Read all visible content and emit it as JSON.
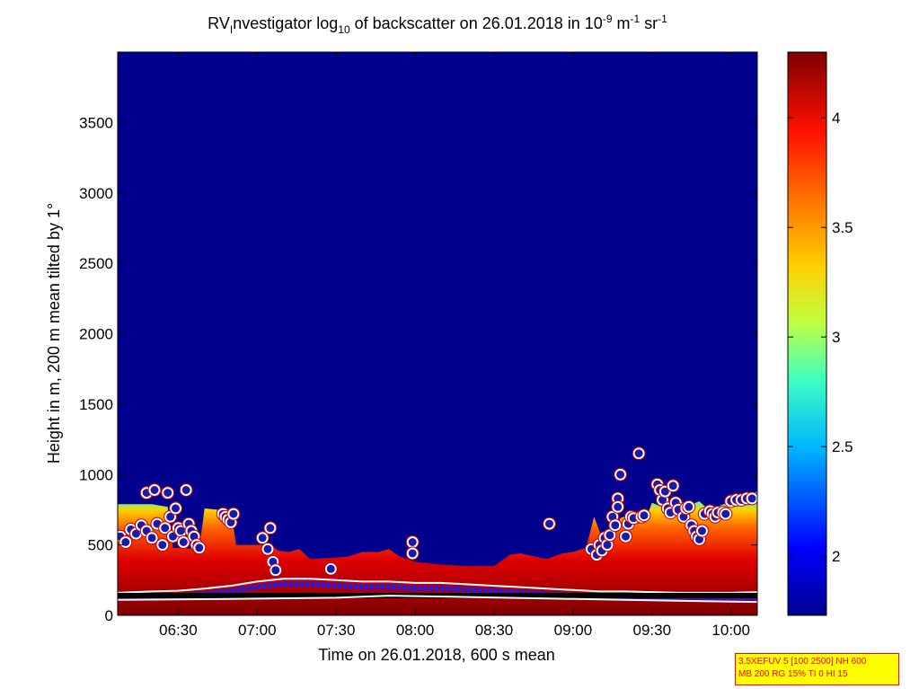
{
  "title": {
    "prefix": "RV",
    "sub1": "I",
    "part1": "nvestigator log",
    "sub2": "10",
    "part2": " of backscatter on 26.01.2018 in 10",
    "sup1": "-9",
    "part3": " m",
    "sup2": "-1",
    "part4": " sr",
    "sup3": "-1"
  },
  "parameters_box": {
    "line1": "3.5XEFUV 5 [100 2500] NH 600",
    "line2": "MB 200 RG 15% TI 0 HI 15"
  },
  "colors": {
    "background_low": "#00008f",
    "marker_fill": "#1a1aa6",
    "marker_ring": "#ffffff",
    "marker_outline": "#cc0000",
    "ground_line": "#000000"
  },
  "chart_data": {
    "type": "heatmap",
    "xlabel": "Time on 26.01.2018, 600 s mean",
    "ylabel": "Height in m, 200 m mean tilted by 1°",
    "x_ticks": [
      "06:30",
      "07:00",
      "07:30",
      "08:00",
      "08:30",
      "09:00",
      "09:30",
      "10:00"
    ],
    "xlim_minutes": [
      367,
      610
    ],
    "x_tick_minutes": [
      390,
      420,
      450,
      480,
      510,
      540,
      570,
      600
    ],
    "y_ticks": [
      0,
      500,
      1000,
      1500,
      2000,
      2500,
      3000,
      3500
    ],
    "ylim": [
      0,
      4000
    ],
    "colorbar": {
      "ticks": [
        2,
        2.5,
        3,
        3.5,
        4
      ],
      "range": [
        1.73,
        4.3
      ]
    },
    "top_layer_m": [
      [
        367,
        790
      ],
      [
        380,
        790
      ],
      [
        386,
        770
      ],
      [
        388,
        480
      ],
      [
        398,
        470
      ],
      [
        400,
        760
      ],
      [
        410,
        740
      ],
      [
        412,
        500
      ],
      [
        425,
        500
      ],
      [
        428,
        460
      ],
      [
        432,
        450
      ],
      [
        436,
        470
      ],
      [
        440,
        400
      ],
      [
        450,
        410
      ],
      [
        455,
        420
      ],
      [
        460,
        450
      ],
      [
        466,
        450
      ],
      [
        470,
        470
      ],
      [
        474,
        420
      ],
      [
        480,
        380
      ],
      [
        490,
        360
      ],
      [
        500,
        350
      ],
      [
        510,
        350
      ],
      [
        516,
        430
      ],
      [
        520,
        440
      ],
      [
        525,
        420
      ],
      [
        530,
        400
      ],
      [
        536,
        440
      ],
      [
        540,
        450
      ],
      [
        545,
        480
      ],
      [
        548,
        700
      ],
      [
        552,
        500
      ],
      [
        556,
        620
      ],
      [
        558,
        690
      ],
      [
        562,
        720
      ],
      [
        565,
        650
      ],
      [
        568,
        700
      ],
      [
        570,
        800
      ],
      [
        575,
        760
      ],
      [
        580,
        820
      ],
      [
        584,
        780
      ],
      [
        588,
        810
      ],
      [
        592,
        740
      ],
      [
        596,
        780
      ],
      [
        600,
        810
      ],
      [
        604,
        850
      ],
      [
        610,
        880
      ]
    ],
    "cloud_markers_m": [
      [
        368,
        560
      ],
      [
        370,
        520
      ],
      [
        372,
        610
      ],
      [
        374,
        580
      ],
      [
        376,
        640
      ],
      [
        378,
        600
      ],
      [
        378,
        870
      ],
      [
        380,
        550
      ],
      [
        381,
        890
      ],
      [
        382,
        650
      ],
      [
        384,
        500
      ],
      [
        385,
        620
      ],
      [
        386,
        870
      ],
      [
        387,
        700
      ],
      [
        388,
        560
      ],
      [
        389,
        760
      ],
      [
        390,
        620
      ],
      [
        391,
        600
      ],
      [
        392,
        520
      ],
      [
        393,
        890
      ],
      [
        394,
        650
      ],
      [
        395,
        600
      ],
      [
        396,
        560
      ],
      [
        397,
        500
      ],
      [
        398,
        480
      ],
      [
        407,
        720
      ],
      [
        408,
        700
      ],
      [
        409,
        680
      ],
      [
        410,
        660
      ],
      [
        411,
        720
      ],
      [
        422,
        550
      ],
      [
        424,
        470
      ],
      [
        425,
        620
      ],
      [
        426,
        380
      ],
      [
        427,
        320
      ],
      [
        448,
        330
      ],
      [
        479,
        520
      ],
      [
        479,
        440
      ],
      [
        531,
        650
      ],
      [
        547,
        470
      ],
      [
        549,
        430
      ],
      [
        550,
        500
      ],
      [
        551,
        460
      ],
      [
        552,
        550
      ],
      [
        553,
        500
      ],
      [
        554,
        570
      ],
      [
        555,
        700
      ],
      [
        556,
        640
      ],
      [
        557,
        830
      ],
      [
        557,
        770
      ],
      [
        558,
        1000
      ],
      [
        560,
        560
      ],
      [
        561,
        650
      ],
      [
        562,
        700
      ],
      [
        563,
        690
      ],
      [
        565,
        1150
      ],
      [
        566,
        700
      ],
      [
        567,
        710
      ],
      [
        572,
        930
      ],
      [
        573,
        890
      ],
      [
        574,
        820
      ],
      [
        575,
        880
      ],
      [
        576,
        760
      ],
      [
        577,
        730
      ],
      [
        578,
        920
      ],
      [
        579,
        800
      ],
      [
        580,
        750
      ],
      [
        582,
        700
      ],
      [
        583,
        760
      ],
      [
        584,
        770
      ],
      [
        585,
        640
      ],
      [
        586,
        600
      ],
      [
        587,
        560
      ],
      [
        588,
        540
      ],
      [
        589,
        600
      ],
      [
        590,
        720
      ],
      [
        592,
        740
      ],
      [
        593,
        720
      ],
      [
        594,
        700
      ],
      [
        595,
        730
      ],
      [
        597,
        730
      ],
      [
        598,
        720
      ],
      [
        600,
        810
      ],
      [
        602,
        820
      ],
      [
        604,
        820
      ],
      [
        606,
        830
      ],
      [
        608,
        830
      ]
    ],
    "low_layer_m": [
      [
        367,
        160
      ],
      [
        380,
        170
      ],
      [
        390,
        175
      ],
      [
        400,
        190
      ],
      [
        410,
        210
      ],
      [
        420,
        240
      ],
      [
        430,
        260
      ],
      [
        440,
        260
      ],
      [
        450,
        250
      ],
      [
        460,
        240
      ],
      [
        470,
        240
      ],
      [
        480,
        230
      ],
      [
        490,
        230
      ],
      [
        500,
        220
      ],
      [
        510,
        210
      ],
      [
        520,
        200
      ],
      [
        530,
        190
      ],
      [
        540,
        180
      ],
      [
        550,
        170
      ],
      [
        560,
        170
      ],
      [
        570,
        165
      ],
      [
        580,
        160
      ],
      [
        590,
        160
      ],
      [
        600,
        160
      ],
      [
        610,
        165
      ]
    ],
    "ground_line_m": 140,
    "ground_white_line_m": [
      [
        367,
        110
      ],
      [
        400,
        115
      ],
      [
        450,
        125
      ],
      [
        470,
        140
      ],
      [
        500,
        130
      ],
      [
        530,
        120
      ],
      [
        560,
        110
      ],
      [
        590,
        100
      ],
      [
        610,
        95
      ]
    ]
  }
}
